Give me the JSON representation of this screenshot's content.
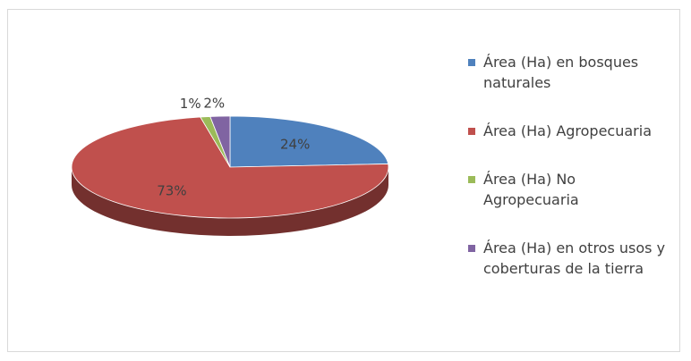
{
  "chart_data": {
    "type": "pie",
    "categories": [
      "Área (Ha) en bosques naturales",
      "Área (Ha) Agropecuaria",
      "Área (Ha) No Agropecuaria",
      "Área (Ha) en otros usos y coberturas de la tierra"
    ],
    "values": [
      24,
      73,
      1,
      2
    ],
    "value_labels": [
      "24%",
      "73%",
      "1%",
      "2%"
    ],
    "colors": [
      "#4f81bd",
      "#c0504d",
      "#9bbb59",
      "#8064a2"
    ],
    "legend": "right"
  }
}
